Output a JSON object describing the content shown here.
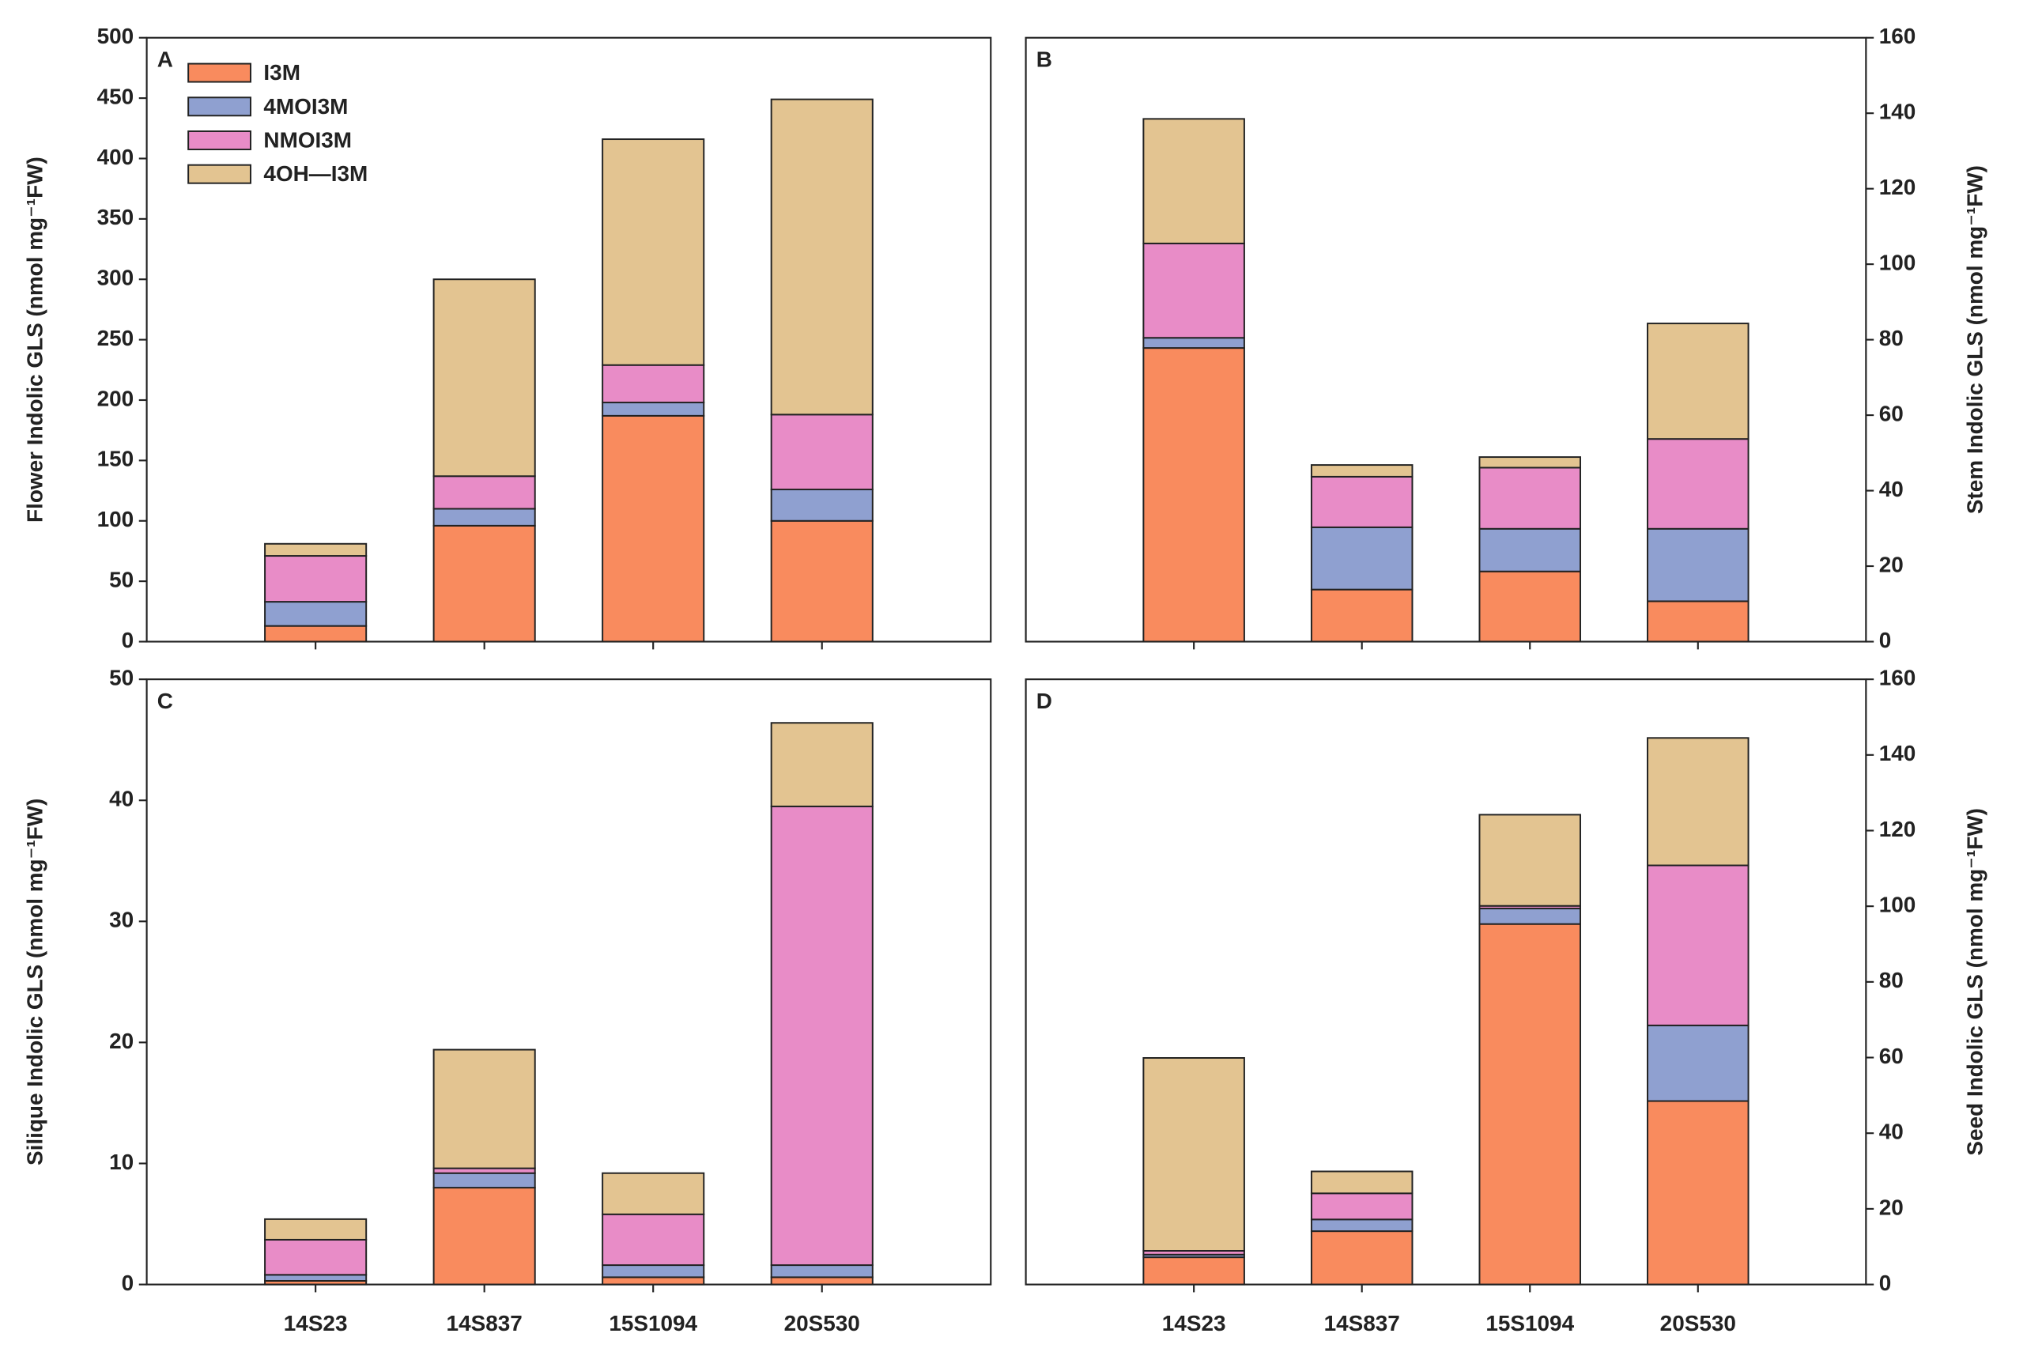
{
  "chart_data": [
    {
      "type": "bar",
      "stacked": true,
      "label": "A",
      "y_label": "Flower Indolic GLS (nmol mg⁻¹FW)",
      "y_axis_side": "left",
      "ylim": [
        0,
        500
      ],
      "yticks": [
        0,
        50,
        100,
        150,
        200,
        250,
        300,
        350,
        400,
        450,
        500
      ],
      "legend": "upper left",
      "series": [
        {
          "name": "I3M",
          "color": "#f98b5e",
          "values": [
            13,
            96,
            187,
            100
          ]
        },
        {
          "name": "4MOI3M",
          "color": "#8fa0d0",
          "values": [
            20,
            14,
            11,
            26
          ]
        },
        {
          "name": "NMOI3M",
          "color": "#e88cc7",
          "values": [
            38,
            27,
            31,
            62
          ]
        },
        {
          "name": "4OH—I3M",
          "color": "#e3c491",
          "values": [
            10,
            163,
            187,
            261
          ]
        }
      ]
    },
    {
      "type": "bar",
      "stacked": true,
      "label": "B",
      "y_label": "Stem Indolic GLS (nmol mg⁻¹FW)",
      "y_axis_side": "right",
      "ylim": [
        0,
        160
      ],
      "yticks": [
        0,
        20,
        40,
        60,
        80,
        100,
        120,
        140,
        160
      ],
      "series": [
        {
          "values": [
            77.8,
            13.8,
            18.6,
            10.7
          ]
        },
        {
          "values": [
            2.7,
            16.5,
            11.3,
            19.2
          ]
        },
        {
          "values": [
            25,
            13.4,
            16.2,
            23.8
          ]
        },
        {
          "values": [
            33,
            3.1,
            2.8,
            30.6
          ]
        }
      ]
    },
    {
      "type": "bar",
      "stacked": true,
      "label": "C",
      "y_label": "Silique Indolic GLS (nmol mg⁻¹FW)",
      "y_axis_side": "left",
      "categories": [
        "14S23",
        "14S837",
        "15S1094",
        "20S530"
      ],
      "ylim": [
        0,
        50
      ],
      "yticks": [
        0,
        10,
        20,
        30,
        40,
        50
      ],
      "series": [
        {
          "values": [
            0.3,
            8.0,
            0.6,
            0.6
          ]
        },
        {
          "values": [
            0.5,
            1.2,
            1.0,
            1.0
          ]
        },
        {
          "values": [
            2.9,
            0.4,
            4.2,
            37.9
          ]
        },
        {
          "values": [
            1.7,
            9.8,
            3.4,
            6.9
          ]
        }
      ]
    },
    {
      "type": "bar",
      "stacked": true,
      "label": "D",
      "y_label": "Seed Indolic GLS (nmol mg⁻¹FW)",
      "y_axis_side": "right",
      "categories": [
        "14S23",
        "14S837",
        "15S1094",
        "20S530"
      ],
      "ylim": [
        0,
        160
      ],
      "yticks": [
        0,
        20,
        40,
        60,
        80,
        100,
        120,
        140,
        160
      ],
      "series": [
        {
          "values": [
            7.2,
            14.1,
            95.3,
            48.5
          ]
        },
        {
          "values": [
            0.7,
            3.1,
            4.1,
            20
          ]
        },
        {
          "values": [
            1.0,
            6.9,
            0.7,
            42.3
          ]
        },
        {
          "values": [
            51.0,
            5.8,
            24.1,
            33.7
          ]
        }
      ]
    }
  ]
}
